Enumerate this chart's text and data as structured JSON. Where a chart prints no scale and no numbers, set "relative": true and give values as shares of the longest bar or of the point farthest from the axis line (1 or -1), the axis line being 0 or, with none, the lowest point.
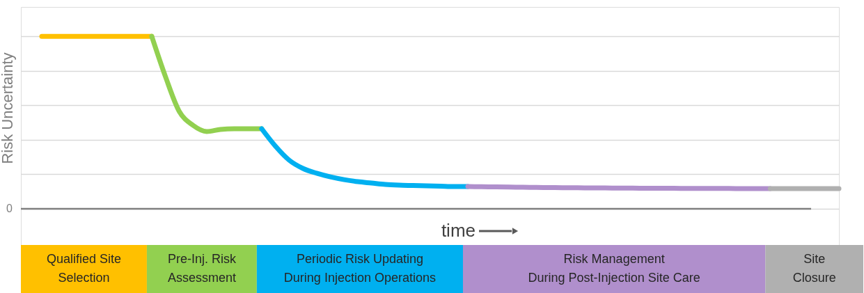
{
  "chart_data": {
    "type": "line",
    "relative": true,
    "grid": "y",
    "xlabel": "time",
    "ylabel": "Risk Uncertainty",
    "annotations": [
      "Qualified Site\nSelection",
      "Pre-Inj. Risk\nAssessment",
      "Periodic Risk Updating\nDuring Injection Operations",
      "Risk Management\nDuring Post-Injection Site Care",
      "Site\nClosure",
      "0"
    ],
    "categories": [
      null,
      null,
      null,
      null,
      null,
      null,
      null,
      null,
      null,
      null,
      null,
      null,
      null,
      null,
      null,
      null,
      null,
      null,
      null,
      null,
      null,
      null,
      null,
      null,
      null,
      null,
      null,
      null,
      null,
      null,
      null,
      null,
      null,
      null,
      null,
      null,
      null,
      null,
      null,
      null,
      null,
      null,
      null,
      null,
      null,
      null,
      null,
      null,
      null,
      null,
      null,
      null,
      null,
      null,
      null,
      null,
      null,
      null,
      null
    ],
    "series": [
      {
        "color": "#ffc000",
        "values": [
          1,
          1,
          1,
          1,
          1,
          1,
          1,
          1,
          1,
          null,
          null,
          null,
          null,
          null,
          null,
          null,
          null,
          null,
          null,
          null,
          null,
          null,
          null,
          null,
          null,
          null,
          null,
          null,
          null,
          null,
          null,
          null,
          null,
          null,
          null,
          null,
          null,
          null,
          null,
          null,
          null,
          null,
          null,
          null,
          null,
          null,
          null,
          null,
          null,
          null,
          null,
          null,
          null,
          null,
          null,
          null,
          null,
          null,
          null
        ]
      },
      {
        "color": "#92d050",
        "values": [
          null,
          null,
          null,
          null,
          null,
          null,
          null,
          null,
          1,
          0.766,
          0.565,
          0.484,
          0.448,
          0.46,
          0.464,
          0.464,
          0.464,
          null,
          null,
          null,
          null,
          null,
          null,
          null,
          null,
          null,
          null,
          null,
          null,
          null,
          null,
          null,
          null,
          null,
          null,
          null,
          null,
          null,
          null,
          null,
          null,
          null,
          null,
          null,
          null,
          null,
          null,
          null,
          null,
          null,
          null,
          null,
          null,
          null,
          null,
          null,
          null,
          null,
          null
        ]
      },
      {
        "color": "#00b0f0",
        "values": [
          null,
          null,
          null,
          null,
          null,
          null,
          null,
          null,
          null,
          null,
          null,
          null,
          null,
          null,
          null,
          null,
          0.464,
          0.363,
          0.282,
          0.234,
          0.206,
          0.185,
          0.169,
          0.157,
          0.149,
          0.141,
          0.137,
          0.135,
          0.133,
          0.131,
          0.129,
          0.129,
          null,
          null,
          null,
          null,
          null,
          null,
          null,
          null,
          null,
          null,
          null,
          null,
          null,
          null,
          null,
          null,
          null,
          null,
          null,
          null,
          null,
          null,
          null,
          null,
          null,
          null,
          null
        ]
      },
      {
        "color": "#b08fcc",
        "values": [
          null,
          null,
          null,
          null,
          null,
          null,
          null,
          null,
          null,
          null,
          null,
          null,
          null,
          null,
          null,
          null,
          null,
          null,
          null,
          null,
          null,
          null,
          null,
          null,
          null,
          null,
          null,
          null,
          null,
          null,
          null,
          0.129,
          0.128,
          0.127,
          0.126,
          0.125,
          0.124,
          0.123,
          0.122,
          0.122,
          0.121,
          0.121,
          0.12,
          0.12,
          0.119,
          0.119,
          0.119,
          0.118,
          0.118,
          0.118,
          0.118,
          0.117,
          0.117,
          0.117,
          null,
          null,
          null,
          null,
          null
        ]
      },
      {
        "color": "#b0b0b0",
        "values": [
          null,
          null,
          null,
          null,
          null,
          null,
          null,
          null,
          null,
          null,
          null,
          null,
          null,
          null,
          null,
          null,
          null,
          null,
          null,
          null,
          null,
          null,
          null,
          null,
          null,
          null,
          null,
          null,
          null,
          null,
          null,
          null,
          null,
          null,
          null,
          null,
          null,
          null,
          null,
          null,
          null,
          null,
          null,
          null,
          null,
          null,
          null,
          null,
          null,
          null,
          null,
          null,
          null,
          0.117,
          0.117,
          0.117,
          0.117,
          0.117,
          0.117
        ]
      }
    ]
  }
}
